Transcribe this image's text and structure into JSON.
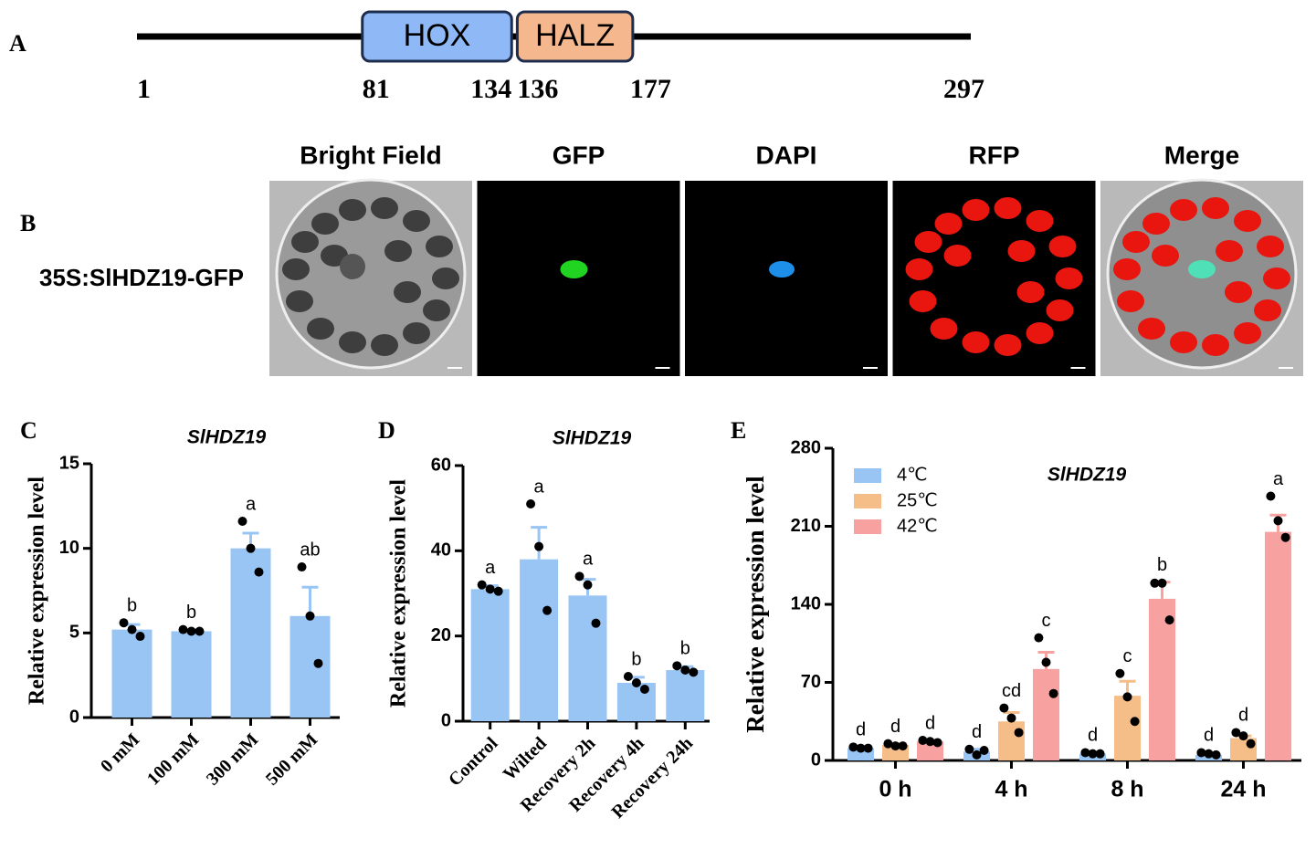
{
  "figure_a": {
    "panel": "A",
    "length_start": 1,
    "length_end": 297,
    "domains": [
      {
        "name": "HOX",
        "start": 81,
        "end": 134,
        "color": "#8fb9f6"
      },
      {
        "name": "HALZ",
        "start": 136,
        "end": 177,
        "color": "#f5b88e"
      }
    ]
  },
  "figure_b": {
    "panel": "B",
    "row_label": "35S:SlHDZ19-GFP",
    "columns": [
      "Bright Field",
      "GFP",
      "DAPI",
      "RFP",
      "Merge"
    ]
  },
  "chart_data": [
    {
      "type": "bar",
      "panel": "C",
      "title": "SlHDZ19",
      "y_label": "Relative expression level",
      "color": "#99c5f4",
      "categories": [
        "0 mM",
        "100 mM",
        "300 mM",
        "500 mM"
      ],
      "values": [
        5.2,
        5.1,
        10.0,
        6.0
      ],
      "errors": [
        0.3,
        0.1,
        0.9,
        1.7
      ],
      "points": [
        [
          5.6,
          5.2,
          4.8
        ],
        [
          5.2,
          5.1,
          5.1
        ],
        [
          11.6,
          10.0,
          8.6
        ],
        [
          8.9,
          6.0,
          3.2
        ]
      ],
      "letters": [
        "b",
        "b",
        "a",
        "ab"
      ],
      "ylim": [
        0,
        15
      ],
      "yticks": [
        0,
        5,
        10,
        15
      ]
    },
    {
      "type": "bar",
      "panel": "D",
      "title": "SlHDZ19",
      "y_label": "Relative expression level",
      "color": "#99c5f4",
      "categories": [
        "Control",
        "Wilted",
        "Recovery 2h",
        "Recovery 4h",
        "Recovery 24h"
      ],
      "values": [
        31,
        38,
        29.5,
        9,
        12
      ],
      "errors": [
        0.8,
        7.5,
        3.8,
        1.3,
        0.8
      ],
      "points": [
        [
          32,
          31,
          30.5
        ],
        [
          51,
          41,
          26
        ],
        [
          34,
          32,
          23
        ],
        [
          10.5,
          9,
          7.5
        ],
        [
          13,
          12,
          11.5
        ]
      ],
      "letters": [
        "a",
        "a",
        "a",
        "b",
        "b"
      ],
      "ylim": [
        0,
        60
      ],
      "yticks": [
        0,
        20,
        40,
        60
      ]
    },
    {
      "type": "bar",
      "panel": "E",
      "title": "SlHDZ19",
      "y_label": "Relative expression level",
      "categories": [
        "0 h",
        "4 h",
        "8 h",
        "24 h"
      ],
      "series": [
        {
          "name": "4℃",
          "color": "#99c5f4",
          "values": [
            11,
            8,
            6,
            5
          ],
          "errors": [
            1,
            2,
            0.5,
            0.5
          ],
          "points": [
            [
              12,
              11,
              11
            ],
            [
              10,
              5,
              9
            ],
            [
              7,
              6,
              6
            ],
            [
              7,
              6,
              5
            ]
          ],
          "letters": [
            "d",
            "d",
            "d",
            "d"
          ]
        },
        {
          "name": "25℃",
          "color": "#f5bd87",
          "values": [
            14,
            35,
            58,
            20
          ],
          "errors": [
            1,
            8,
            13,
            2
          ],
          "points": [
            [
              15,
              13,
              13
            ],
            [
              47,
              38,
              25
            ],
            [
              78,
              57,
              35
            ],
            [
              25,
              22,
              15
            ]
          ],
          "letters": [
            "d",
            "cd",
            "c",
            "d"
          ]
        },
        {
          "name": "42℃",
          "color": "#f7a1a1",
          "values": [
            17,
            82,
            145,
            205
          ],
          "errors": [
            1,
            15,
            15,
            15
          ],
          "points": [
            [
              18,
              17,
              16
            ],
            [
              110,
              88,
              60
            ],
            [
              159,
              159,
              126
            ],
            [
              237,
              215,
              200
            ]
          ],
          "letters": [
            "d",
            "c",
            "b",
            "a"
          ]
        }
      ],
      "ylim": [
        0,
        280
      ],
      "yticks": [
        0,
        70,
        140,
        210,
        280
      ],
      "legend": "top-left"
    }
  ]
}
